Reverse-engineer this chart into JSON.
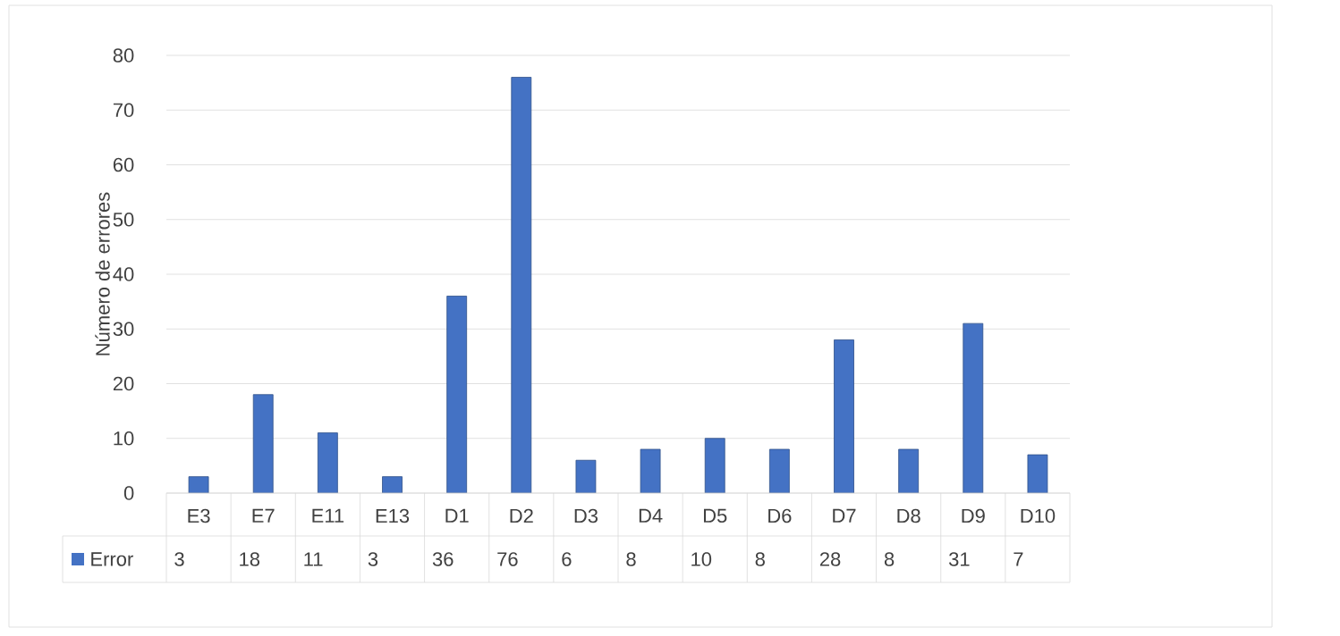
{
  "chart_data": {
    "type": "bar",
    "ylabel": "Número de errores",
    "categories": [
      "E3",
      "E7",
      "E11",
      "E13",
      "D1",
      "D2",
      "D3",
      "D4",
      "D5",
      "D6",
      "D7",
      "D8",
      "D9",
      "D10"
    ],
    "series": [
      {
        "name": "Error",
        "color": "#4472c4",
        "values": [
          3,
          18,
          11,
          3,
          36,
          76,
          6,
          8,
          10,
          8,
          28,
          8,
          31,
          7
        ]
      }
    ],
    "ylim": [
      0,
      80
    ],
    "yticks": [
      0,
      10,
      20,
      30,
      40,
      50,
      60,
      70,
      80
    ],
    "grid": "y",
    "legend": "bottom",
    "data_labels": true
  }
}
